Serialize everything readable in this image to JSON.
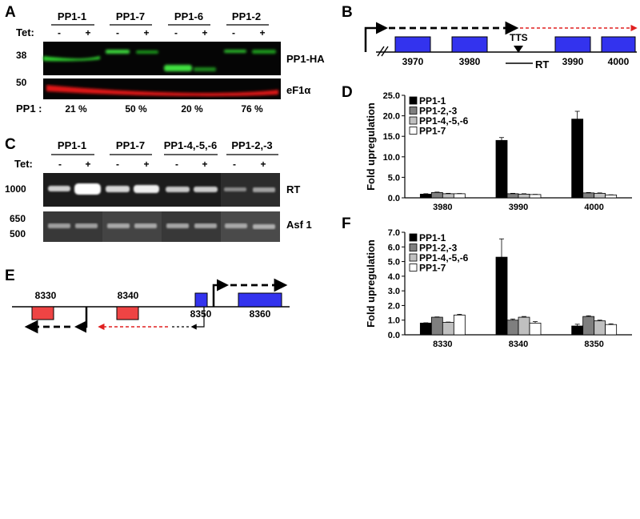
{
  "panels": [
    "A",
    "B",
    "C",
    "D",
    "E",
    "F"
  ],
  "panel_a": {
    "groups": [
      "PP1-1",
      "PP1-7",
      "PP1-6",
      "PP1-2"
    ],
    "tet_label": "Tet:",
    "minus": "-",
    "plus": "+",
    "mw": [
      "38",
      "50"
    ],
    "band_labels": [
      "PP1-HA",
      "eF1α"
    ],
    "pp1_label": "PP1 :",
    "percents": [
      "21 %",
      "50 %",
      "20 %",
      "76 %"
    ]
  },
  "panel_b": {
    "positions": [
      "3970",
      "3980",
      "3990",
      "4000"
    ],
    "tts": "TTS",
    "rt": "RT",
    "colors": {
      "box": "#3333ee",
      "arrow_red": "#e02020"
    }
  },
  "panel_c": {
    "groups": [
      "PP1-1",
      "PP1-7",
      "PP1-4,-5,-6",
      "PP1-2,-3"
    ],
    "tet_label": "Tet:",
    "minus": "-",
    "plus": "+",
    "mw_rt": [
      "1000"
    ],
    "mw_asf": [
      "650",
      "500"
    ],
    "band_labels": [
      "RT",
      "Asf 1"
    ]
  },
  "panel_e": {
    "positions": [
      "8330",
      "8340",
      "8350",
      "8360"
    ],
    "colors": {
      "red_box": "#ee4444",
      "blue_box": "#3333ee",
      "arrow_red": "#e02020"
    }
  },
  "chart_data": [
    {
      "panel": "D",
      "type": "bar",
      "categories": [
        "3980",
        "3990",
        "4000"
      ],
      "ylabel": "Fold upregulation",
      "ylim": [
        0,
        25
      ],
      "yticks": [
        "0.0",
        "5.0",
        "10.0",
        "15.0",
        "20.0",
        "25.0"
      ],
      "legend_position": "top-left",
      "series": [
        {
          "name": "PP1-1",
          "color": "#000000",
          "values": [
            0.9,
            14.0,
            19.2
          ],
          "errors": [
            0.1,
            0.7,
            1.9
          ]
        },
        {
          "name": "PP1-2,-3",
          "color": "#7f7f7f",
          "values": [
            1.3,
            1.0,
            1.2
          ],
          "errors": [
            0.1,
            0.1,
            0.1
          ]
        },
        {
          "name": "PP1-4,-5,-6",
          "color": "#c0c0c0",
          "values": [
            1.0,
            0.9,
            1.1
          ],
          "errors": [
            0.1,
            0.1,
            0.1
          ]
        },
        {
          "name": "PP1-7",
          "color": "#ffffff",
          "values": [
            1.0,
            0.8,
            0.7
          ],
          "errors": [
            0.05,
            0.05,
            0.05
          ]
        }
      ]
    },
    {
      "panel": "F",
      "type": "bar",
      "categories": [
        "8330",
        "8340",
        "8350"
      ],
      "ylabel": "Fold upregulation",
      "ylim": [
        0,
        7
      ],
      "yticks": [
        "0.0",
        "1.0",
        "2.0",
        "3.0",
        "4.0",
        "5.0",
        "6.0",
        "7.0"
      ],
      "legend_position": "top-left",
      "series": [
        {
          "name": "PP1-1",
          "color": "#000000",
          "values": [
            0.8,
            5.3,
            0.6
          ],
          "errors": [
            0.02,
            1.25,
            0.12
          ]
        },
        {
          "name": "PP1-2,-3",
          "color": "#7f7f7f",
          "values": [
            1.2,
            1.0,
            1.25
          ],
          "errors": [
            0.02,
            0.08,
            0.05
          ]
        },
        {
          "name": "PP1-4,-5,-6",
          "color": "#c0c0c0",
          "values": [
            0.85,
            1.2,
            0.95
          ],
          "errors": [
            0.02,
            0.05,
            0.05
          ]
        },
        {
          "name": "PP1-7",
          "color": "#ffffff",
          "values": [
            1.35,
            0.8,
            0.7
          ],
          "errors": [
            0.05,
            0.1,
            0.05
          ]
        }
      ]
    }
  ]
}
